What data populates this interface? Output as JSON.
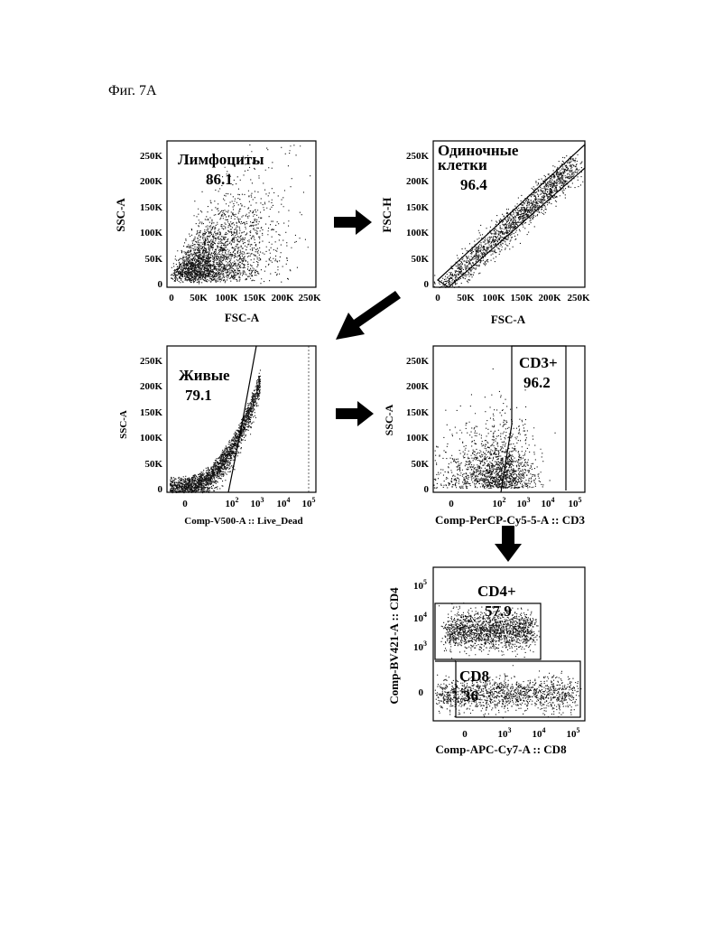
{
  "figure_label": "Фиг. 7A",
  "colors": {
    "ink": "#000000",
    "dots": "#111111",
    "background": "#ffffff"
  },
  "chart_data": [
    {
      "id": "p1",
      "type": "scatter",
      "panel": "lymphocytes",
      "xlabel": "FSC-A",
      "ylabel": "SSC-A",
      "xticks": [
        "0",
        "50K",
        "100K",
        "150K",
        "200K",
        "250K"
      ],
      "yticks": [
        "0",
        "50K",
        "100K",
        "150K",
        "200K",
        "250K"
      ],
      "xlim": [
        0,
        262144
      ],
      "ylim": [
        0,
        262144
      ],
      "gate": {
        "name": "Лимфоциты",
        "value": "86.1"
      }
    },
    {
      "id": "p2",
      "type": "scatter",
      "panel": "single-cells",
      "xlabel": "FSC-A",
      "ylabel": "FSC-H",
      "xticks": [
        "0",
        "50K",
        "100K",
        "150K",
        "200K",
        "250K"
      ],
      "yticks": [
        "0",
        "50K",
        "100K",
        "150K",
        "200K",
        "250K"
      ],
      "xlim": [
        0,
        262144
      ],
      "ylim": [
        0,
        262144
      ],
      "gate": {
        "name": "Одиночные клетки",
        "name_lines": [
          "Одиночные",
          "клетки"
        ],
        "value": "96.4"
      }
    },
    {
      "id": "p3",
      "type": "scatter",
      "panel": "live",
      "xlabel": "Comp-V500-A :: Live_Dead",
      "ylabel": "SSC-A",
      "xticks": [
        "0",
        "10^2",
        "10^3",
        "10^4",
        "10^5"
      ],
      "yticks": [
        "0",
        "50K",
        "100K",
        "150K",
        "200K",
        "250K"
      ],
      "xscale": "biexponential",
      "ylim": [
        0,
        262144
      ],
      "gate": {
        "name": "Живые",
        "value": "79.1"
      }
    },
    {
      "id": "p4",
      "type": "scatter",
      "panel": "cd3",
      "xlabel": "Comp-PerCP-Cy5-5-A :: CD3",
      "ylabel": "SSC-A",
      "xticks": [
        "0",
        "10^2",
        "10^3",
        "10^4",
        "10^5"
      ],
      "yticks": [
        "0",
        "50K",
        "100K",
        "150K",
        "200K",
        "250K"
      ],
      "xscale": "biexponential",
      "ylim": [
        0,
        262144
      ],
      "gate": {
        "name": "CD3+",
        "value": "96.2"
      }
    },
    {
      "id": "p5",
      "type": "scatter",
      "panel": "cd4-cd8",
      "xlabel": "Comp-APC-Cy7-A :: CD8",
      "ylabel": "Comp-BV421-A :: CD4",
      "xticks": [
        "0",
        "10^3",
        "10^4",
        "10^5"
      ],
      "yticks": [
        "0",
        "10^3",
        "10^4",
        "10^5"
      ],
      "xscale": "biexponential",
      "yscale": "biexponential",
      "gates": [
        {
          "name": "CD4+",
          "value": "57.9"
        },
        {
          "name": "CD8",
          "value": "36"
        }
      ]
    }
  ]
}
